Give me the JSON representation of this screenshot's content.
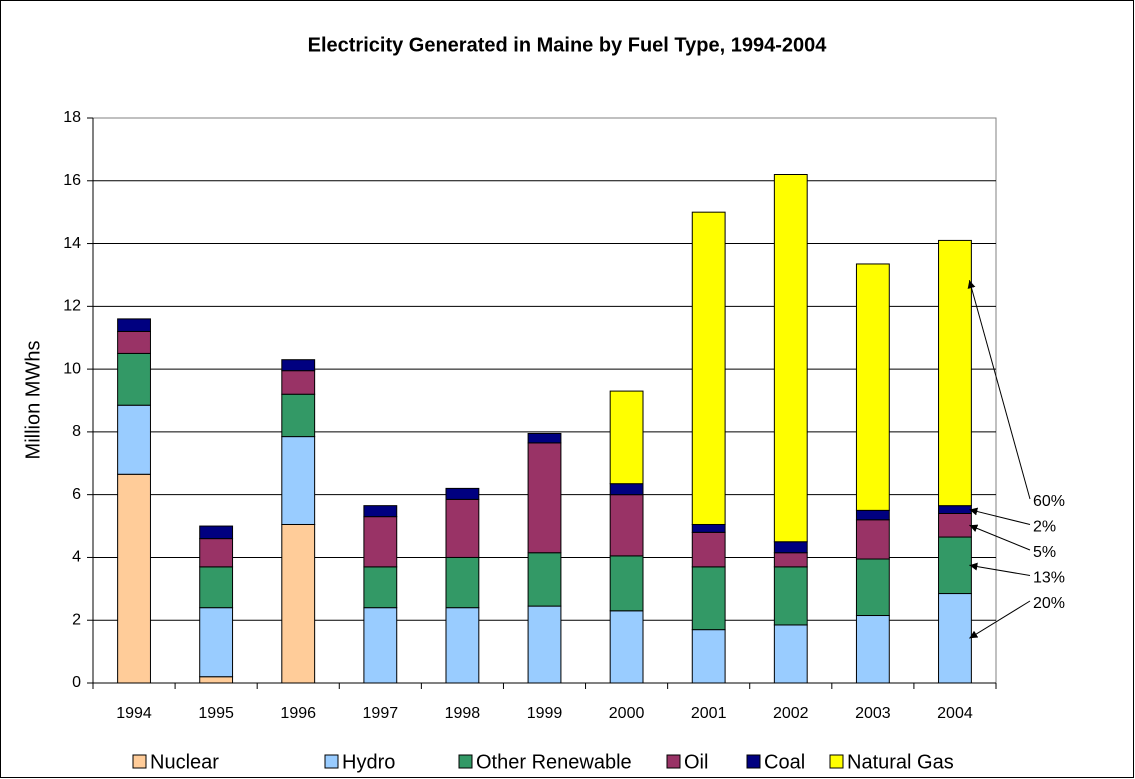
{
  "chart_data": {
    "type": "stacked-bar",
    "title": "Electricity Generated in Maine by Fuel Type, 1994-2004",
    "ylabel": "Million MWhs",
    "categories": [
      "1994",
      "1995",
      "1996",
      "1997",
      "1998",
      "1999",
      "2000",
      "2001",
      "2002",
      "2003",
      "2004"
    ],
    "series": [
      {
        "name": "Nuclear",
        "color": "#ffcc99",
        "values": [
          6.65,
          0.2,
          5.05,
          null,
          null,
          null,
          null,
          null,
          null,
          null,
          null
        ]
      },
      {
        "name": "Hydro",
        "color": "#99ccff",
        "values": [
          2.2,
          2.2,
          2.8,
          2.4,
          2.4,
          2.45,
          2.3,
          1.7,
          1.85,
          2.15,
          2.85
        ]
      },
      {
        "name": "Other Renewable",
        "color": "#339966",
        "values": [
          1.65,
          1.3,
          1.35,
          1.3,
          1.6,
          1.7,
          1.75,
          2.0,
          1.85,
          1.8,
          1.8
        ]
      },
      {
        "name": "Oil",
        "color": "#993366",
        "values": [
          0.7,
          0.9,
          0.75,
          1.6,
          1.85,
          3.5,
          1.95,
          1.1,
          0.45,
          1.25,
          0.75
        ]
      },
      {
        "name": "Coal",
        "color": "#000080",
        "values": [
          0.4,
          0.4,
          0.35,
          0.35,
          0.35,
          0.3,
          0.35,
          0.25,
          0.35,
          0.3,
          0.25
        ]
      },
      {
        "name": "Natural Gas",
        "color": "#ffff00",
        "values": [
          null,
          null,
          null,
          null,
          null,
          null,
          2.95,
          9.95,
          11.7,
          7.85,
          8.45
        ]
      }
    ],
    "annotations": [
      "60%",
      "2%",
      "5%",
      "13%",
      "20%"
    ],
    "ylim": [
      0,
      18
    ],
    "yticks": [
      0,
      2,
      4,
      6,
      8,
      10,
      12,
      14,
      16,
      18
    ],
    "grid": true,
    "legend": "bottom"
  }
}
